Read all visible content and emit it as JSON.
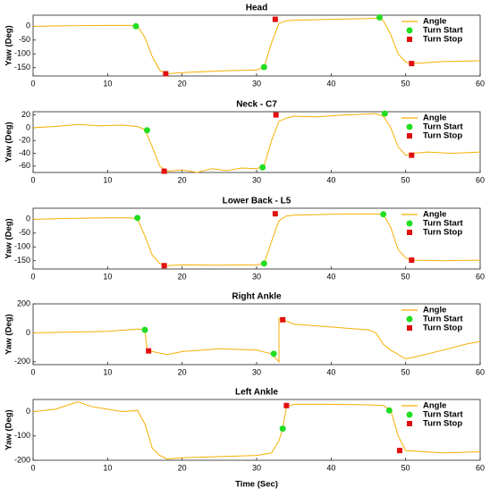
{
  "chart_data": [
    {
      "type": "line",
      "title": "Head",
      "ylabel": "Yaw (Deg)",
      "xlim": [
        0,
        60
      ],
      "xticks": [
        0,
        10,
        20,
        30,
        40,
        50,
        60
      ],
      "ylim": [
        -180,
        40
      ],
      "yticks": [
        -150,
        -100,
        -50,
        0
      ],
      "legend": "upper right",
      "series": [
        {
          "name": "Angle",
          "color": "#f5b000",
          "x": [
            0,
            5,
            10,
            13,
            14,
            15,
            16,
            17,
            18,
            20,
            25,
            30,
            31,
            32,
            33,
            34,
            35,
            40,
            45,
            46.5,
            47,
            48,
            49,
            50,
            51,
            55,
            60
          ],
          "values": [
            0,
            2,
            3,
            3,
            0,
            -40,
            -110,
            -160,
            -172,
            -168,
            -162,
            -158,
            -148,
            -60,
            10,
            20,
            22,
            25,
            28,
            30,
            20,
            -30,
            -100,
            -130,
            -135,
            -128,
            -125
          ]
        },
        {
          "name": "Turn Start",
          "color": "#22dd22",
          "marker": "circle",
          "x": [
            13.8,
            31,
            46.5
          ],
          "values": [
            0,
            -148,
            32
          ]
        },
        {
          "name": "Turn Stop",
          "color": "#e01010",
          "marker": "square",
          "x": [
            17.8,
            32.5,
            50.8
          ],
          "values": [
            -172,
            25,
            -135
          ]
        }
      ]
    },
    {
      "type": "line",
      "title": "Neck - C7",
      "ylabel": "Yaw (Deg)",
      "xlim": [
        0,
        60
      ],
      "xticks": [
        0,
        10,
        20,
        30,
        40,
        50,
        60
      ],
      "ylim": [
        -70,
        25
      ],
      "yticks": [
        -60,
        -40,
        -20,
        0,
        20
      ],
      "legend": "upper right",
      "series": [
        {
          "name": "Angle",
          "color": "#f5b000",
          "x": [
            0,
            3,
            6,
            9,
            12,
            14,
            15,
            16,
            17,
            18,
            20,
            22,
            24,
            26,
            28,
            30,
            31,
            32,
            33,
            34,
            35,
            38,
            42,
            46,
            47,
            48,
            49,
            50,
            51,
            53,
            56,
            60
          ],
          "values": [
            0,
            2,
            5,
            3,
            4,
            2,
            -3,
            -30,
            -60,
            -68,
            -66,
            -70,
            -64,
            -67,
            -63,
            -64,
            -60,
            -20,
            10,
            15,
            18,
            17,
            20,
            22,
            18,
            0,
            -30,
            -43,
            -40,
            -38,
            -40,
            -38
          ]
        },
        {
          "name": "Turn Start",
          "color": "#22dd22",
          "marker": "circle",
          "x": [
            15.3,
            30.8,
            47.2
          ],
          "values": [
            -4,
            -62,
            22
          ]
        },
        {
          "name": "Turn Stop",
          "color": "#e01010",
          "marker": "square",
          "x": [
            17.6,
            32.6,
            50.8
          ],
          "values": [
            -68,
            20,
            -43
          ]
        }
      ]
    },
    {
      "type": "line",
      "title": "Lower Back - L5",
      "ylabel": "Yaw (Deg)",
      "xlim": [
        0,
        60
      ],
      "xticks": [
        0,
        10,
        20,
        30,
        40,
        50,
        60
      ],
      "ylim": [
        -180,
        40
      ],
      "yticks": [
        -150,
        -100,
        -50,
        0
      ],
      "legend": "upper right",
      "series": [
        {
          "name": "Angle",
          "color": "#f5b000",
          "x": [
            0,
            5,
            10,
            13,
            14,
            15,
            16,
            17,
            18,
            20,
            25,
            30,
            31,
            32,
            33,
            34,
            35,
            40,
            45,
            47,
            48,
            49,
            50,
            51,
            55,
            60
          ],
          "values": [
            0,
            3,
            5,
            5,
            2,
            -60,
            -130,
            -160,
            -168,
            -165,
            -166,
            -165,
            -160,
            -80,
            -5,
            12,
            15,
            18,
            20,
            18,
            -30,
            -110,
            -140,
            -148,
            -150,
            -148
          ]
        },
        {
          "name": "Turn Start",
          "color": "#22dd22",
          "marker": "circle",
          "x": [
            14,
            31,
            47
          ],
          "values": [
            5,
            -160,
            18
          ]
        },
        {
          "name": "Turn Stop",
          "color": "#e01010",
          "marker": "square",
          "x": [
            17.6,
            32.5,
            50.8
          ],
          "values": [
            -168,
            20,
            -148
          ]
        }
      ]
    },
    {
      "type": "line",
      "title": "Right Ankle",
      "ylabel": "Yaw (Deg)",
      "xlim": [
        0,
        60
      ],
      "xticks": [
        0,
        10,
        20,
        30,
        40,
        50,
        60
      ],
      "ylim": [
        -220,
        200
      ],
      "yticks": [
        -200,
        0,
        200
      ],
      "legend": "upper right",
      "series": [
        {
          "name": "Angle",
          "color": "#f5b000",
          "x": [
            0,
            5,
            10,
            14,
            15,
            15.3,
            16,
            18,
            20,
            25,
            30,
            32,
            33,
            33,
            33.5,
            35,
            40,
            45,
            46,
            47,
            48,
            50,
            51,
            55,
            58,
            60
          ],
          "values": [
            0,
            5,
            10,
            25,
            20,
            -120,
            -130,
            -150,
            -130,
            -110,
            -120,
            -145,
            -200,
            100,
            90,
            60,
            40,
            20,
            0,
            -80,
            -120,
            -180,
            -170,
            -120,
            -80,
            -60
          ]
        },
        {
          "name": "Turn Start",
          "color": "#22dd22",
          "marker": "circle",
          "x": [
            15,
            32.3
          ],
          "values": [
            20,
            -145
          ]
        },
        {
          "name": "Turn Stop",
          "color": "#e01010",
          "marker": "square",
          "x": [
            15.5,
            33.5
          ],
          "values": [
            -125,
            90
          ]
        }
      ]
    },
    {
      "type": "line",
      "title": "Left Ankle",
      "ylabel": "Yaw (Deg)",
      "xlabel": "Time (Sec)",
      "xlim": [
        0,
        60
      ],
      "xticks": [
        0,
        10,
        20,
        30,
        40,
        50,
        60
      ],
      "ylim": [
        -200,
        50
      ],
      "yticks": [
        -200,
        -100,
        0
      ],
      "legend": "upper right",
      "series": [
        {
          "name": "Angle",
          "color": "#f5b000",
          "x": [
            0,
            3,
            5,
            6,
            8,
            10,
            12,
            14,
            15,
            16,
            17,
            18,
            20,
            25,
            30,
            32,
            33,
            33.5,
            34,
            35,
            40,
            45,
            47,
            48,
            49,
            50,
            55,
            60
          ],
          "values": [
            0,
            10,
            30,
            40,
            20,
            10,
            0,
            5,
            -50,
            -150,
            -180,
            -195,
            -190,
            -185,
            -180,
            -170,
            -120,
            -70,
            20,
            30,
            30,
            28,
            25,
            5,
            -100,
            -160,
            -170,
            -165
          ]
        },
        {
          "name": "Turn Start",
          "color": "#22dd22",
          "marker": "circle",
          "x": [
            33.5,
            47.8
          ],
          "values": [
            -70,
            5
          ]
        },
        {
          "name": "Turn Stop",
          "color": "#e01010",
          "marker": "square",
          "x": [
            34,
            49.2
          ],
          "values": [
            25,
            -160
          ]
        }
      ]
    }
  ]
}
